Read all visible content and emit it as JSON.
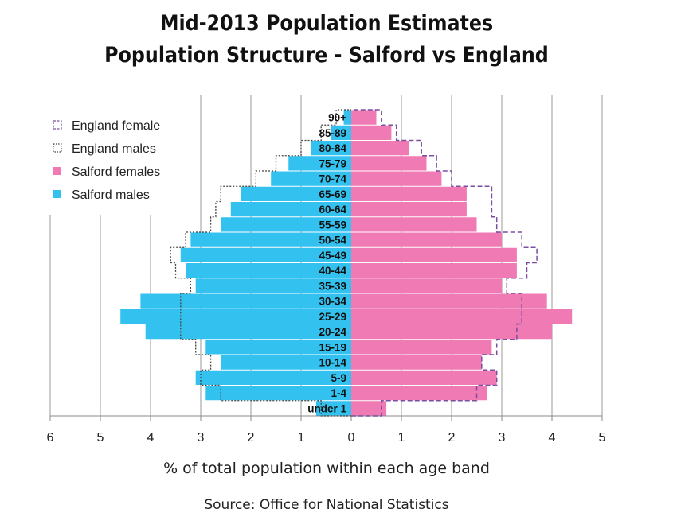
{
  "title_line1": "Mid-2013 Population Estimates",
  "title_line2": "Population Structure - Salford vs England",
  "source": "Source: Office for National Statistics",
  "chart_data": {
    "type": "bar",
    "orientation": "horizontal-population-pyramid",
    "xlabel": "% of total population within each age band",
    "x_ticks": [
      "6",
      "5",
      "4",
      "3",
      "2",
      "1",
      "0",
      "1",
      "2",
      "3",
      "4",
      "5"
    ],
    "xlim_males": [
      0,
      6
    ],
    "xlim_females": [
      0,
      5
    ],
    "grid": "vertical",
    "legend_position": "top-left",
    "categories": [
      "under 1",
      "1-4",
      "5-9",
      "10-14",
      "15-19",
      "20-24",
      "25-29",
      "30-34",
      "35-39",
      "40-44",
      "45-49",
      "50-54",
      "55-59",
      "60-64",
      "65-69",
      "70-74",
      "75-79",
      "80-84",
      "85-89",
      "90+"
    ],
    "series": [
      {
        "name": "England female",
        "style": "dashed-outline",
        "color": "#7a4fa0",
        "values": [
          0.6,
          2.5,
          2.9,
          2.6,
          2.9,
          3.3,
          3.4,
          3.4,
          3.1,
          3.5,
          3.7,
          3.4,
          2.9,
          2.8,
          2.8,
          2.0,
          1.7,
          1.4,
          0.9,
          0.6
        ]
      },
      {
        "name": "England males",
        "style": "dotted-outline",
        "color": "#444444",
        "values": [
          0.6,
          2.6,
          3.0,
          2.8,
          3.1,
          3.4,
          3.4,
          3.4,
          3.2,
          3.5,
          3.6,
          3.3,
          2.8,
          2.7,
          2.6,
          1.9,
          1.5,
          1.0,
          0.6,
          0.3
        ]
      },
      {
        "name": "Salford females",
        "style": "filled",
        "color": "#f07ab4",
        "values": [
          0.7,
          2.7,
          2.9,
          2.6,
          2.8,
          4.0,
          4.4,
          3.9,
          3.0,
          3.3,
          3.3,
          3.0,
          2.5,
          2.3,
          2.3,
          1.8,
          1.5,
          1.15,
          0.8,
          0.5
        ]
      },
      {
        "name": "Salford males",
        "style": "filled",
        "color": "#33c2f0",
        "values": [
          0.7,
          2.9,
          3.1,
          2.6,
          2.9,
          4.1,
          4.6,
          4.2,
          3.1,
          3.3,
          3.4,
          3.2,
          2.6,
          2.4,
          2.2,
          1.6,
          1.25,
          0.8,
          0.4,
          0.15
        ]
      }
    ],
    "colors": {
      "salford_male": "#33c2f0",
      "salford_female": "#f07ab4",
      "england_female_outline": "#7a4fa0",
      "england_male_outline": "#444444",
      "grid": "#9a9a9a"
    }
  }
}
